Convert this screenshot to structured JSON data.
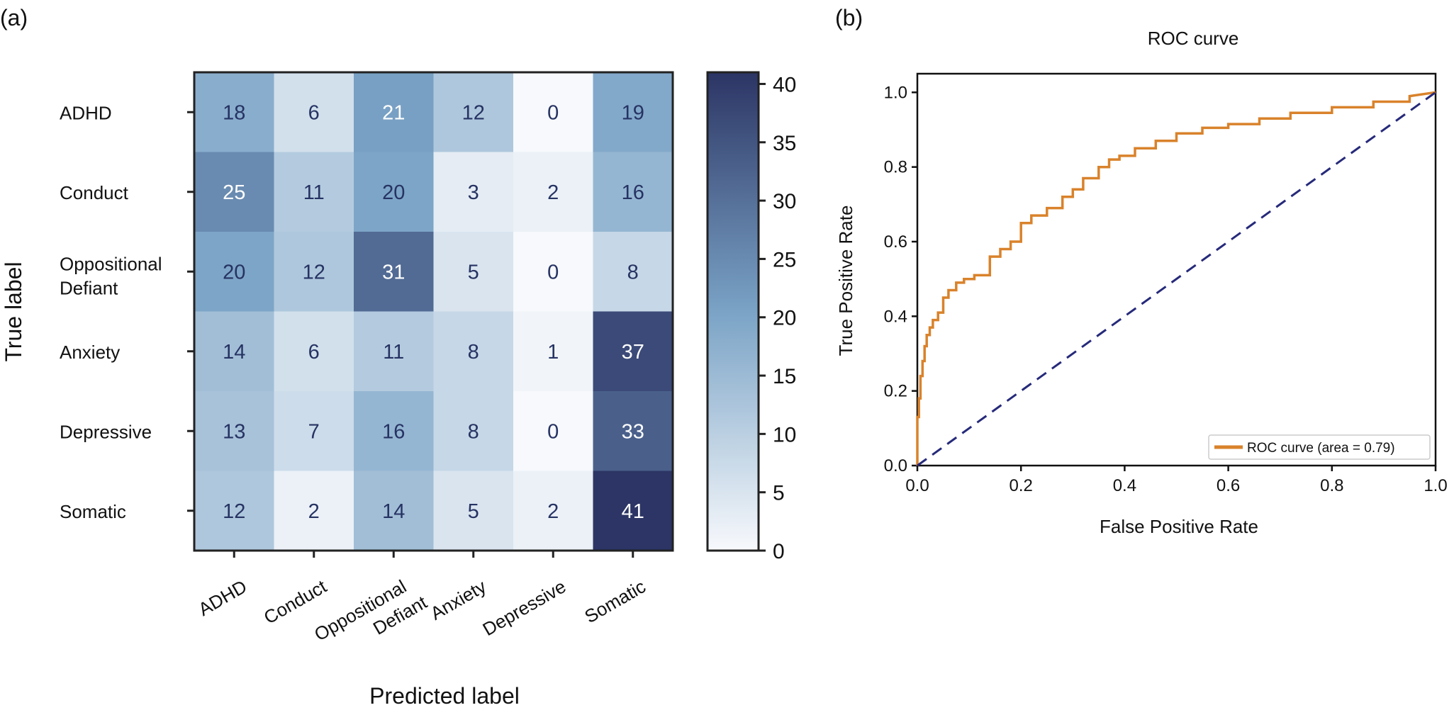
{
  "chart_data": [
    {
      "panel": "(a)",
      "type": "heatmap",
      "title": "",
      "xlabel": "Predicted label",
      "ylabel": "True label",
      "x_categories": [
        "ADHD",
        "Conduct",
        "Oppositional Defiant",
        "Anxiety",
        "Depressive",
        "Somatic"
      ],
      "y_categories": [
        "ADHD",
        "Conduct",
        "Oppositional Defiant",
        "Anxiety",
        "Depressive",
        "Somatic"
      ],
      "values": [
        [
          18,
          6,
          21,
          12,
          0,
          19
        ],
        [
          25,
          11,
          20,
          3,
          2,
          16
        ],
        [
          20,
          12,
          31,
          5,
          0,
          8
        ],
        [
          14,
          6,
          11,
          8,
          1,
          37
        ],
        [
          13,
          7,
          16,
          8,
          0,
          33
        ],
        [
          12,
          2,
          14,
          5,
          2,
          41
        ]
      ],
      "colorbar": {
        "min": 0,
        "max": 41,
        "ticks": [
          0,
          5,
          10,
          15,
          20,
          25,
          30,
          35,
          40
        ]
      },
      "colormap": {
        "low": "#f7f9fc",
        "mid": "#7aa3c6",
        "high": "#2c3565"
      },
      "colors": {
        "text_dark": "#263363",
        "text_light": "#ffffff",
        "frame": "#222222"
      }
    },
    {
      "panel": "(b)",
      "type": "line",
      "title": "ROC curve",
      "xlabel": "False Positive Rate",
      "ylabel": "True Positive Rate",
      "xlim": [
        0,
        1.0
      ],
      "ylim": [
        0,
        1.05
      ],
      "xticks": [
        "0.0",
        "0.2",
        "0.4",
        "0.6",
        "0.8",
        "1.0"
      ],
      "yticks": [
        "0.0",
        "0.2",
        "0.4",
        "0.6",
        "0.8",
        "1.0"
      ],
      "legend_position": "lower-right",
      "series": [
        {
          "name": "ROC curve (area = 0.79)",
          "color": "#d9822b",
          "style": "step",
          "x": [
            0.0,
            0.0,
            0.003,
            0.003,
            0.006,
            0.006,
            0.01,
            0.01,
            0.014,
            0.014,
            0.018,
            0.018,
            0.024,
            0.024,
            0.03,
            0.03,
            0.04,
            0.04,
            0.05,
            0.05,
            0.06,
            0.06,
            0.075,
            0.075,
            0.09,
            0.09,
            0.11,
            0.11,
            0.14,
            0.14,
            0.16,
            0.16,
            0.18,
            0.18,
            0.2,
            0.2,
            0.22,
            0.22,
            0.25,
            0.25,
            0.28,
            0.28,
            0.3,
            0.3,
            0.32,
            0.32,
            0.35,
            0.35,
            0.37,
            0.37,
            0.39,
            0.39,
            0.42,
            0.42,
            0.46,
            0.46,
            0.5,
            0.5,
            0.55,
            0.55,
            0.6,
            0.6,
            0.66,
            0.66,
            0.72,
            0.72,
            0.8,
            0.8,
            0.88,
            0.88,
            0.95,
            0.95,
            1.0
          ],
          "y": [
            0.0,
            0.13,
            0.13,
            0.18,
            0.18,
            0.24,
            0.24,
            0.28,
            0.28,
            0.32,
            0.32,
            0.35,
            0.35,
            0.37,
            0.37,
            0.39,
            0.39,
            0.41,
            0.41,
            0.45,
            0.45,
            0.47,
            0.47,
            0.49,
            0.49,
            0.5,
            0.5,
            0.51,
            0.51,
            0.56,
            0.56,
            0.58,
            0.58,
            0.6,
            0.6,
            0.65,
            0.65,
            0.67,
            0.67,
            0.69,
            0.69,
            0.72,
            0.72,
            0.74,
            0.74,
            0.77,
            0.77,
            0.8,
            0.8,
            0.82,
            0.82,
            0.83,
            0.83,
            0.85,
            0.85,
            0.87,
            0.87,
            0.89,
            0.89,
            0.905,
            0.905,
            0.915,
            0.915,
            0.93,
            0.93,
            0.945,
            0.945,
            0.96,
            0.96,
            0.975,
            0.975,
            0.99,
            1.0
          ]
        },
        {
          "name": "",
          "color": "#262a7a",
          "style": "dashed",
          "x": [
            0,
            1
          ],
          "y": [
            0,
            1
          ]
        }
      ]
    }
  ]
}
